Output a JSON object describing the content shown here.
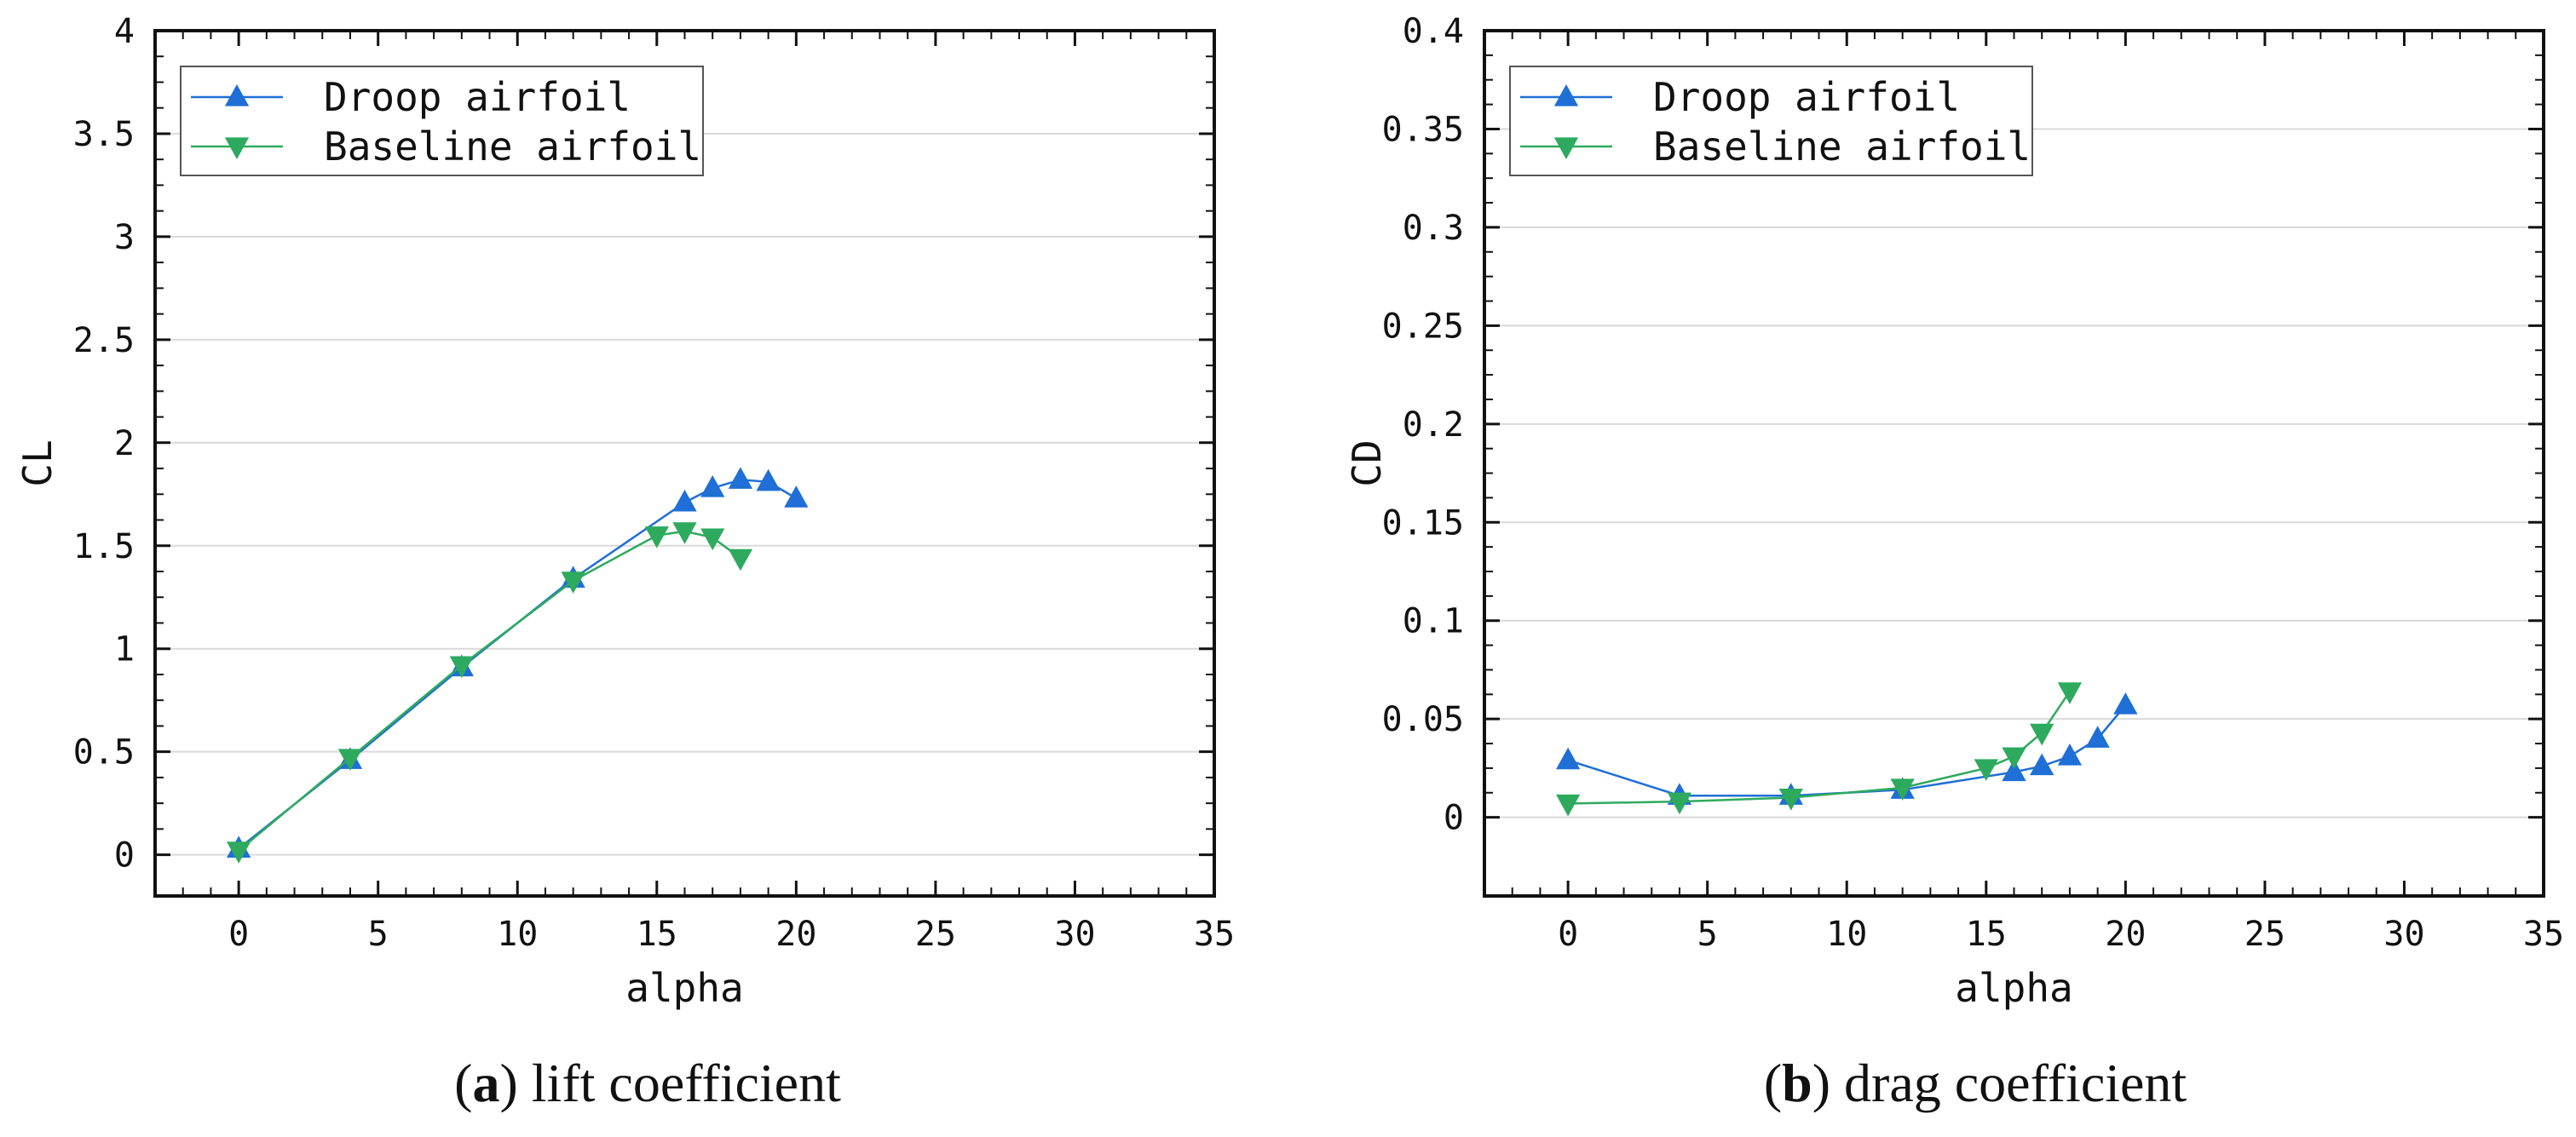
{
  "chart_data": [
    {
      "type": "line",
      "id": "a",
      "xlabel": "alpha",
      "ylabel": "CL",
      "xlim": [
        -3,
        35
      ],
      "ylim": [
        -0.2,
        4
      ],
      "xticks": [
        0,
        5,
        10,
        15,
        20,
        25,
        30,
        35
      ],
      "yticks": [
        0,
        0.5,
        1,
        1.5,
        2,
        2.5,
        3,
        3.5,
        4
      ],
      "xtick_labels": [
        "0",
        "5",
        "10",
        "15",
        "20",
        "25",
        "30",
        "35"
      ],
      "ytick_labels": [
        "0",
        "0.5",
        "1",
        "1.5",
        "2",
        "2.5",
        "3",
        "3.5",
        "4"
      ],
      "grid": true,
      "legend_position": "top-left",
      "caption_letter": "a",
      "caption_text": "lift coefficient",
      "series": [
        {
          "name": "Droop airfoil",
          "color": "#1f6fd6",
          "marker": "triangle-up",
          "x": [
            0,
            4,
            8,
            12,
            16,
            17,
            18,
            19,
            20
          ],
          "y": [
            0.03,
            0.46,
            0.91,
            1.34,
            1.71,
            1.78,
            1.82,
            1.81,
            1.73
          ]
        },
        {
          "name": "Baseline airfoil",
          "color": "#2eaa5e",
          "marker": "triangle-down",
          "x": [
            0,
            4,
            8,
            12,
            15,
            16,
            17,
            18
          ],
          "y": [
            0.02,
            0.47,
            0.92,
            1.33,
            1.55,
            1.57,
            1.54,
            1.44
          ]
        }
      ]
    },
    {
      "type": "line",
      "id": "b",
      "xlabel": "alpha",
      "ylabel": "CD",
      "xlim": [
        -3,
        35
      ],
      "ylim": [
        -0.04,
        0.4
      ],
      "xticks": [
        0,
        5,
        10,
        15,
        20,
        25,
        30,
        35
      ],
      "yticks": [
        0,
        0.05,
        0.1,
        0.15,
        0.2,
        0.25,
        0.3,
        0.35,
        0.4
      ],
      "xtick_labels": [
        "0",
        "5",
        "10",
        "15",
        "20",
        "25",
        "30",
        "35"
      ],
      "ytick_labels": [
        "0",
        "0.05",
        "0.1",
        "0.15",
        "0.2",
        "0.25",
        "0.3",
        "0.35",
        "0.4"
      ],
      "grid": true,
      "legend_position": "top-left",
      "caption_letter": "b",
      "caption_text": "drag coefficient",
      "series": [
        {
          "name": "Droop airfoil",
          "color": "#1f6fd6",
          "marker": "triangle-up",
          "x": [
            0,
            4,
            8,
            12,
            16,
            17,
            18,
            19,
            20
          ],
          "y": [
            0.029,
            0.011,
            0.011,
            0.014,
            0.023,
            0.026,
            0.031,
            0.04,
            0.057
          ]
        },
        {
          "name": "Baseline airfoil",
          "color": "#2eaa5e",
          "marker": "triangle-down",
          "x": [
            0,
            4,
            8,
            12,
            15,
            16,
            17,
            18
          ],
          "y": [
            0.007,
            0.008,
            0.01,
            0.015,
            0.025,
            0.031,
            0.043,
            0.064
          ]
        }
      ]
    }
  ]
}
